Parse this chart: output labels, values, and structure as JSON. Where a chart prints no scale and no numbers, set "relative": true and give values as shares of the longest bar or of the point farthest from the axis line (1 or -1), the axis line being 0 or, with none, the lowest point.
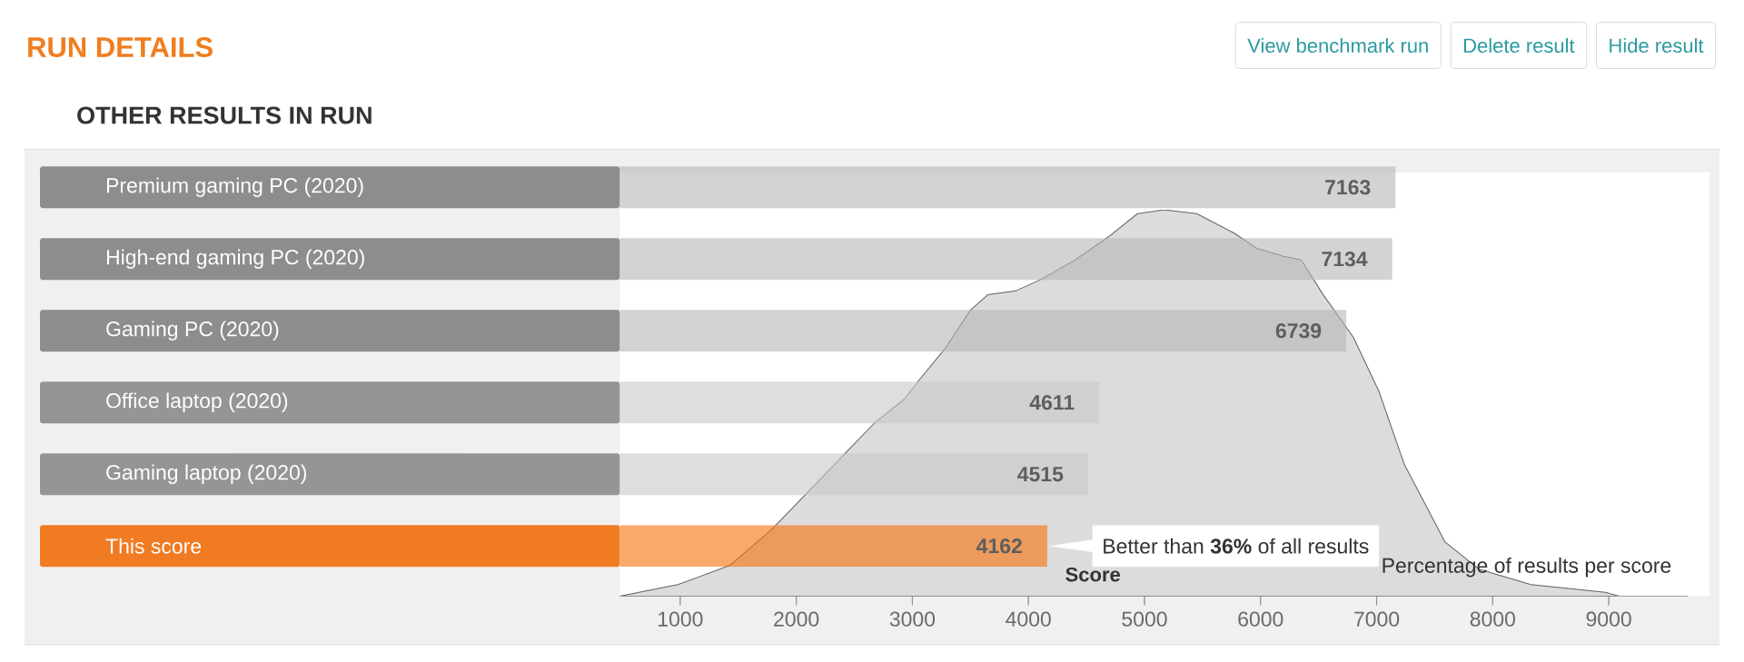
{
  "chart_data": [
    {
      "type": "bar",
      "orientation": "horizontal",
      "title": "RUN DETAILS",
      "subtitle": "OTHER RESULTS IN RUN",
      "xlabel": "Score",
      "categories": [
        "Premium gaming PC (2020)",
        "High-end gaming PC (2020)",
        "Gaming PC (2020)",
        "Office laptop (2020)",
        "Gaming laptop (2020)",
        "This score"
      ],
      "values": [
        7163,
        7134,
        6739,
        4611,
        4515,
        4162
      ],
      "colors": [
        "#d3d3d3",
        "#d3d3d3",
        "#d3d3d3",
        "#dedede",
        "#dedede",
        "#fba96b"
      ],
      "data_labels": true,
      "xlim": [
        480,
        9680
      ],
      "xticks": [
        1000,
        2000,
        3000,
        4000,
        5000,
        6000,
        7000,
        8000,
        9000
      ],
      "tick_labels": "y",
      "annotations": [
        "View benchmark run",
        "Delete result",
        "Hide result",
        {
          "text": "Better than **36%** of all results",
          "x": 4162,
          "y": "This score"
        }
      ]
    },
    {
      "type": "area",
      "relative": true,
      "color": "#dcdcdc",
      "xlim": [
        480,
        9680
      ],
      "xticks": [
        1000,
        2000,
        3000,
        4000,
        5000,
        6000,
        7000,
        8000,
        9000
      ],
      "tick_labels": "x",
      "ylabel": "Percentage of results per score",
      "x": [
        480,
        980,
        1430,
        1780,
        2070,
        2390,
        2680,
        2930,
        3060,
        3280,
        3500,
        3650,
        3890,
        4110,
        4400,
        4690,
        4940,
        5170,
        5450,
        5770,
        5970,
        6190,
        6350,
        6540,
        6800,
        7020,
        7240,
        7590,
        7880,
        8330,
        8970,
        9090
      ],
      "values": [
        0,
        0.03,
        0.08,
        0.17,
        0.26,
        0.36,
        0.45,
        0.51,
        0.56,
        0.64,
        0.74,
        0.78,
        0.79,
        0.82,
        0.87,
        0.93,
        0.99,
        1,
        0.99,
        0.94,
        0.9,
        0.88,
        0.87,
        0.78,
        0.67,
        0.53,
        0.34,
        0.14,
        0.07,
        0.03,
        0.01,
        0
      ]
    }
  ]
}
